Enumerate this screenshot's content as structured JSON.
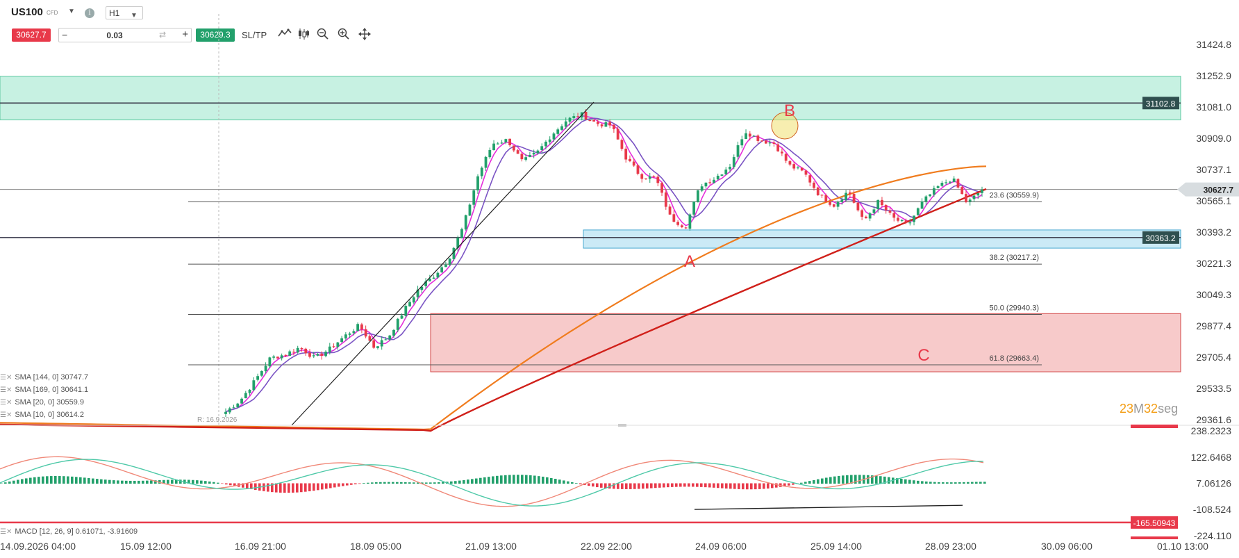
{
  "toolbar": {
    "symbol": "US100",
    "symbol_tag": "CFD",
    "timeframe": "H1",
    "sell_price": "30627.7",
    "buy_price": "30629.3",
    "quantity": "0.03",
    "sltp_label": "SL/TP",
    "icons": [
      "line-chart-icon",
      "candles-icon",
      "zoom-out-icon",
      "zoom-in-icon",
      "crosshair-icon"
    ]
  },
  "colors": {
    "bull": "#22a06b",
    "bear": "#e8394a",
    "sma_orange": "#f07c1e",
    "sma_red": "#d0201a",
    "sma_purple": "#7b54c4",
    "sma_magenta": "#e62edb",
    "zone_green": "#bdeedd",
    "zone_blue": "#c2e6f4",
    "zone_red": "#f6c1c1",
    "macd_line": "#f08878",
    "signal_line": "#4ec9a8"
  },
  "chart_data": [
    {
      "type": "candlestick",
      "symbol": "US100",
      "timeframe": "H1",
      "ylim": [
        29320,
        31540
      ],
      "y_ticks": [
        "31424.8",
        "31252.9",
        "31081.0",
        "30909.0",
        "30737.1",
        "30565.1",
        "30393.2",
        "30221.3",
        "30049.3",
        "29877.4",
        "29705.4",
        "29533.5",
        "29361.6"
      ],
      "x_ticks": [
        "14.09.2026 04:00",
        "15.09 12:00",
        "16.09 21:00",
        "18.09 05:00",
        "21.09 13:00",
        "22.09 22:00",
        "24.09 06:00",
        "25.09 14:00",
        "28.09 23:00",
        "30.09 06:00",
        "01.10 13:00"
      ],
      "close_path": [
        29405,
        29470,
        29580,
        29700,
        29720,
        29760,
        29700,
        29750,
        29820,
        29880,
        29760,
        29820,
        29960,
        30080,
        30150,
        30240,
        30420,
        30700,
        30880,
        30900,
        30780,
        30830,
        30930,
        31010,
        31040,
        30990,
        30980,
        30800,
        30700,
        30690,
        30470,
        30420,
        30650,
        30690,
        30760,
        30950,
        30900,
        30880,
        30760,
        30720,
        30600,
        30540,
        30620,
        30450,
        30560,
        30470,
        30430,
        30560,
        30640,
        30690,
        30550,
        30628
      ],
      "sma_144": {
        "label": "SMA [144, 0] 30747.7",
        "start": [
          29300,
          29315
        ],
        "end": [
          30752
        ]
      },
      "sma_169": {
        "label": "SMA [169, 0] 30641.1"
      },
      "sma_20": {
        "label": "SMA [20, 0] 30559.9"
      },
      "sma_10": {
        "label": "SMA [10, 0] 30614.2"
      },
      "horizontal_levels": [
        {
          "label": "31102.8",
          "value": 31102.8
        },
        {
          "label": "30627.7",
          "value": 30627.7
        },
        {
          "label": "30363.2",
          "value": 30363.2
        }
      ],
      "fibonacci": [
        {
          "label": "23.6 (30559.9)",
          "value": 30559.9
        },
        {
          "label": "38.2 (30217.2)",
          "value": 30217.2
        },
        {
          "label": "50.0 (29940.3)",
          "value": 29940.3
        },
        {
          "label": "61.8 (29663.4)",
          "value": 29663.4
        }
      ],
      "zones": [
        {
          "name": "green",
          "top": 31250,
          "bottom": 31010
        },
        {
          "name": "blue",
          "top": 30405,
          "bottom": 30305
        },
        {
          "name": "red",
          "top": 29945,
          "bottom": 29625
        }
      ],
      "annotations": [
        "A",
        "B",
        "C"
      ]
    },
    {
      "type": "histogram",
      "name": "MACD [12, 26, 9] 0.61071, -3.91609",
      "ylim": [
        -224.11,
        238.2323
      ],
      "y_ticks": [
        "238.2323",
        "122.6468",
        "7.06126",
        "-108.524",
        "-224.110"
      ],
      "level_label": "-165.50943",
      "level_value": -165.50943
    }
  ],
  "timer": {
    "a": "23",
    "b": "M",
    "c": "32",
    "d": "seg"
  },
  "r_label": "R: 16.9.2026"
}
